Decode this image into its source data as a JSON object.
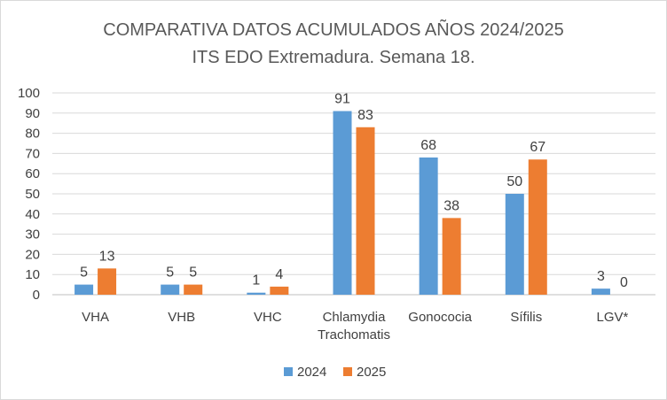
{
  "chart_data": {
    "type": "bar",
    "title": "COMPARATIVA DATOS ACUMULADOS AÑOS 2024/2025",
    "subtitle": "ITS EDO Extremadura. Semana 18.",
    "categories": [
      [
        "VHA"
      ],
      [
        "VHB"
      ],
      [
        "VHC"
      ],
      [
        "Chlamydia",
        "Trachomatis"
      ],
      [
        "Gonococia"
      ],
      [
        "Sífilis"
      ],
      [
        "LGV*"
      ]
    ],
    "series": [
      {
        "name": "2024",
        "color": "#5b9bd5",
        "values": [
          5,
          5,
          1,
          91,
          68,
          50,
          3
        ]
      },
      {
        "name": "2025",
        "color": "#ed7d31",
        "values": [
          13,
          5,
          4,
          83,
          38,
          67,
          0
        ]
      }
    ],
    "ylim": [
      0,
      100
    ],
    "yticks": [
      0,
      10,
      20,
      30,
      40,
      50,
      60,
      70,
      80,
      90,
      100
    ],
    "xlabel": "",
    "ylabel": "",
    "grid": true,
    "legend_position": "bottom"
  }
}
